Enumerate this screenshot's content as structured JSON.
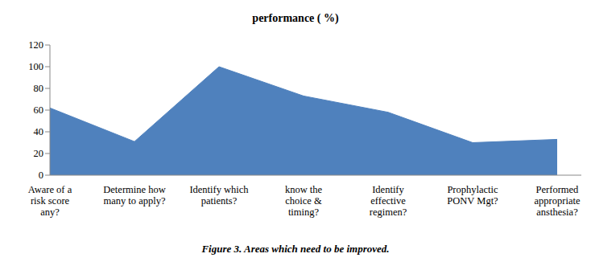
{
  "chart_data": {
    "type": "area",
    "title": "performance ( %)",
    "caption": "Figure 3. Areas which need to be improved.",
    "categories": [
      "Aware of a risk score any?",
      "Determine how many to apply?",
      "Identify which patients?",
      "know the choice & timing?",
      "Identify effective regimen?",
      "Prophylactic PONV Mgt?",
      "Performed appropriate ansthesia?"
    ],
    "values": [
      62,
      31,
      100,
      73,
      58,
      30,
      33
    ],
    "color": "#4f81bd",
    "ylim": [
      0,
      120
    ],
    "yticks": [
      0,
      20,
      40,
      60,
      80,
      100,
      120
    ],
    "grid": false
  }
}
